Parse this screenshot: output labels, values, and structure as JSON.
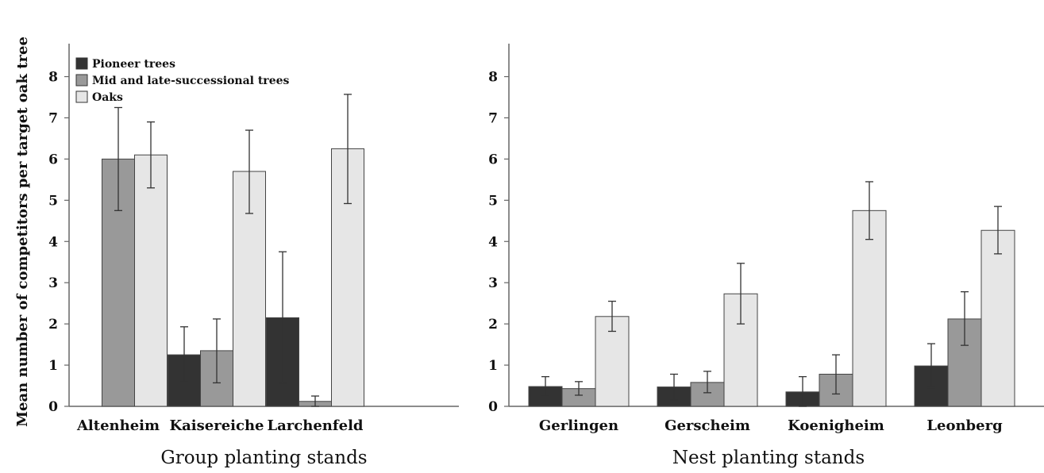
{
  "ylabel": "Mean number  of competitors  per target  oak tree",
  "legend": [
    "Pioneer trees",
    "Mid and late-successional trees",
    "Oaks"
  ],
  "colors": {
    "Pioneer trees": "#333333",
    "Mid and late-successional trees": "#999999",
    "Oaks": "#e6e6e6"
  },
  "chart_data": [
    {
      "type": "bar",
      "xlabel": "Group planting  stands",
      "ylabel": "Mean number  of competitors  per target  oak tree",
      "ylim": [
        0,
        8.8
      ],
      "yticks": [
        0,
        1,
        2,
        3,
        4,
        5,
        6,
        7,
        8
      ],
      "legend_position": "top-left",
      "categories": [
        "Altenheim",
        "Kaisereiche",
        "Larchenfeld"
      ],
      "series": [
        {
          "name": "Pioneer trees",
          "values": [
            0,
            1.25,
            2.15
          ],
          "error": [
            [
              0,
              0
            ],
            [
              0.6,
              1.93
            ],
            [
              0.57,
              3.75
            ]
          ]
        },
        {
          "name": "Mid and late-successional trees",
          "values": [
            6.0,
            1.35,
            0.12
          ],
          "error": [
            [
              4.75,
              7.25
            ],
            [
              0.57,
              2.12
            ],
            [
              0,
              0.25
            ]
          ]
        },
        {
          "name": "Oaks",
          "values": [
            6.1,
            5.7,
            6.25
          ],
          "error": [
            [
              5.3,
              6.9
            ],
            [
              4.68,
              6.7
            ],
            [
              4.92,
              7.57
            ]
          ]
        }
      ]
    },
    {
      "type": "bar",
      "xlabel": "Nest planting  stands",
      "ylim": [
        0,
        8.8
      ],
      "yticks": [
        0,
        1,
        2,
        3,
        4,
        5,
        6,
        7,
        8
      ],
      "categories": [
        "Gerlingen",
        "Gerscheim",
        "Koenigheim",
        "Leonberg"
      ],
      "series": [
        {
          "name": "Pioneer trees",
          "values": [
            0.48,
            0.47,
            0.35,
            0.98
          ],
          "error": [
            [
              0.25,
              0.72
            ],
            [
              0.15,
              0.78
            ],
            [
              0,
              0.72
            ],
            [
              0.45,
              1.52
            ]
          ]
        },
        {
          "name": "Mid and late-successional trees",
          "values": [
            0.43,
            0.58,
            0.78,
            2.12
          ],
          "error": [
            [
              0.27,
              0.6
            ],
            [
              0.33,
              0.85
            ],
            [
              0.3,
              1.25
            ],
            [
              1.48,
              2.78
            ]
          ]
        },
        {
          "name": "Oaks",
          "values": [
            2.18,
            2.73,
            4.75,
            4.27
          ],
          "error": [
            [
              1.82,
              2.55
            ],
            [
              2.0,
              3.47
            ],
            [
              4.05,
              5.45
            ],
            [
              3.7,
              4.85
            ]
          ]
        }
      ]
    }
  ]
}
